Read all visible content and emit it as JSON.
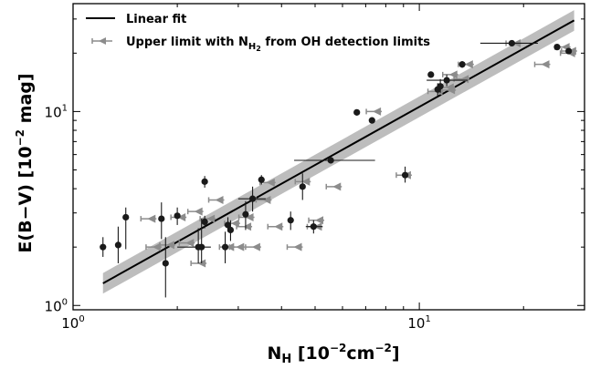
{
  "chart_data": {
    "type": "scatter",
    "xscale": "log",
    "yscale": "log",
    "xlim": [
      1.0,
      30.0
    ],
    "ylim": [
      0.95,
      36.0
    ],
    "xlabel": {
      "main": "N",
      "sub": "H",
      "rest": " [10",
      "sup": "−2",
      "rest2": "cm",
      "sup2": "−2",
      "end": "]"
    },
    "ylabel": {
      "main": "E(B−V) [10",
      "sup": "−2",
      "end": " mag]"
    },
    "x_ticks": [
      {
        "value": 1,
        "base": "10",
        "exp": "0"
      },
      {
        "value": 10,
        "base": "10",
        "exp": "1"
      }
    ],
    "y_ticks": [
      {
        "value": 1,
        "base": "10",
        "exp": "0"
      },
      {
        "value": 10,
        "base": "10",
        "exp": "1"
      }
    ],
    "legend": {
      "placement": "top-left",
      "fit_label": "Linear fit",
      "limit_label": {
        "main": "Upper limit with N",
        "sub": "H",
        "sub2": "2",
        "end": " from OH detection limits"
      }
    },
    "fit": {
      "x": [
        1.22,
        28.0
      ],
      "y": [
        1.3,
        29.5
      ],
      "band_factor": 1.13
    },
    "colors": {
      "detection": "#1a1a1a",
      "limit": "#8c8c8c",
      "band": "#bdbdbd",
      "fit": "#000000"
    },
    "detections": [
      {
        "x": 1.22,
        "y": 2.0,
        "yerr_lo": 0.22,
        "yerr_hi": 0.25
      },
      {
        "x": 1.35,
        "y": 2.05,
        "yerr_lo": 0.4,
        "yerr_hi": 0.5
      },
      {
        "x": 1.42,
        "y": 2.85,
        "yerr_lo": 0.9,
        "yerr_hi": 0.35
      },
      {
        "x": 1.8,
        "y": 2.8,
        "yerr_lo": 0.6,
        "yerr_hi": 0.6
      },
      {
        "x": 1.85,
        "y": 1.65,
        "yerr_lo": 0.55,
        "yerr_hi": 0.6
      },
      {
        "x": 2.0,
        "y": 2.9,
        "yerr_lo": 0.3,
        "yerr_hi": 0.3
      },
      {
        "x": 2.3,
        "y": 2.0,
        "xerr_lo": 0.3,
        "xerr_hi": 0.2,
        "yerr_lo": 0.35,
        "yerr_hi": 0.5
      },
      {
        "x": 2.35,
        "y": 2.0,
        "yerr_lo": 0.35,
        "yerr_hi": 0.8
      },
      {
        "x": 2.4,
        "y": 4.35,
        "yerr_lo": 0.3,
        "yerr_hi": 0.3
      },
      {
        "x": 2.4,
        "y": 2.7,
        "yerr_lo": 0.2,
        "yerr_hi": 0.2
      },
      {
        "x": 2.75,
        "y": 2.0,
        "yerr_lo": 0.35,
        "yerr_hi": 0.4
      },
      {
        "x": 2.8,
        "y": 2.6,
        "yerr_lo": 0.2,
        "yerr_hi": 0.25
      },
      {
        "x": 2.85,
        "y": 2.45,
        "yerr_lo": 0.3,
        "yerr_hi": 0.3
      },
      {
        "x": 3.15,
        "y": 2.95,
        "yerr_lo": 0.5,
        "yerr_hi": 0.5
      },
      {
        "x": 3.3,
        "y": 3.55,
        "xerr_lo": 0.3,
        "xerr_hi": 0.3,
        "yerr_lo": 0.5,
        "yerr_hi": 0.55
      },
      {
        "x": 3.5,
        "y": 4.45,
        "yerr_lo": 0.25,
        "yerr_hi": 0.25
      },
      {
        "x": 4.25,
        "y": 2.75,
        "yerr_lo": 0.3,
        "yerr_hi": 0.3
      },
      {
        "x": 4.6,
        "y": 4.1,
        "yerr_lo": 0.6,
        "yerr_hi": 0.7
      },
      {
        "x": 4.95,
        "y": 2.55,
        "xerr_lo": 0.25,
        "xerr_hi": 0.3,
        "yerr_lo": 0.2,
        "yerr_hi": 0.2
      },
      {
        "x": 5.55,
        "y": 5.6,
        "xerr_lo": 1.2,
        "xerr_hi": 1.9,
        "yerr_lo": 0.15,
        "yerr_hi": 0.15
      },
      {
        "x": 6.6,
        "y": 9.9,
        "yerr_lo": 0.3,
        "yerr_hi": 0.3
      },
      {
        "x": 7.3,
        "y": 9.0,
        "yerr_lo": 0.3,
        "yerr_hi": 0.3
      },
      {
        "x": 9.1,
        "y": 4.7,
        "yerr_lo": 0.4,
        "yerr_hi": 0.5
      },
      {
        "x": 10.8,
        "y": 15.5,
        "yerr_lo": 0.5,
        "yerr_hi": 0.5
      },
      {
        "x": 11.3,
        "y": 13.0,
        "yerr_lo": 1.0,
        "yerr_hi": 1.0
      },
      {
        "x": 11.5,
        "y": 13.5,
        "yerr_lo": 1.0,
        "yerr_hi": 1.2
      },
      {
        "x": 12.0,
        "y": 14.5,
        "xerr_lo": 1.5,
        "xerr_hi": 1.8,
        "yerr_lo": 1.0,
        "yerr_hi": 1.0
      },
      {
        "x": 13.3,
        "y": 17.5,
        "yerr_lo": 0.7,
        "yerr_hi": 0.7
      },
      {
        "x": 18.5,
        "y": 22.5,
        "xerr_lo": 3.5,
        "xerr_hi": 3.5,
        "yerr_lo": 0.6,
        "yerr_hi": 0.6
      },
      {
        "x": 25.0,
        "y": 21.5,
        "yerr_lo": 0.5,
        "yerr_hi": 0.5
      },
      {
        "x": 27.0,
        "y": 20.5,
        "yerr_lo": 0.5,
        "yerr_hi": 0.5
      }
    ],
    "upper_limits": [
      {
        "x": 1.72,
        "y": 2.8
      },
      {
        "x": 1.78,
        "y": 2.0
      },
      {
        "x": 1.95,
        "y": 2.05
      },
      {
        "x": 2.1,
        "y": 2.85
      },
      {
        "x": 2.22,
        "y": 2.1
      },
      {
        "x": 2.4,
        "y": 1.65
      },
      {
        "x": 2.35,
        "y": 3.05
      },
      {
        "x": 2.55,
        "y": 2.8
      },
      {
        "x": 2.7,
        "y": 3.5
      },
      {
        "x": 2.9,
        "y": 2.0
      },
      {
        "x": 3.0,
        "y": 2.65
      },
      {
        "x": 3.1,
        "y": 2.0
      },
      {
        "x": 3.25,
        "y": 2.55
      },
      {
        "x": 3.3,
        "y": 2.85
      },
      {
        "x": 3.45,
        "y": 2.0
      },
      {
        "x": 3.7,
        "y": 3.5
      },
      {
        "x": 3.8,
        "y": 4.3
      },
      {
        "x": 4.0,
        "y": 2.55
      },
      {
        "x": 4.55,
        "y": 2.0
      },
      {
        "x": 4.8,
        "y": 4.35
      },
      {
        "x": 5.2,
        "y": 2.55
      },
      {
        "x": 5.25,
        "y": 2.75
      },
      {
        "x": 5.9,
        "y": 4.1
      },
      {
        "x": 7.7,
        "y": 10.0
      },
      {
        "x": 9.4,
        "y": 4.7
      },
      {
        "x": 11.6,
        "y": 12.7
      },
      {
        "x": 12.6,
        "y": 12.9
      },
      {
        "x": 12.5,
        "y": 13.3
      },
      {
        "x": 12.8,
        "y": 15.5
      },
      {
        "x": 13.8,
        "y": 14.7
      },
      {
        "x": 14.2,
        "y": 17.5
      },
      {
        "x": 19.5,
        "y": 22.5
      },
      {
        "x": 23.6,
        "y": 17.5
      },
      {
        "x": 27.0,
        "y": 21.5
      },
      {
        "x": 28.2,
        "y": 20.5
      },
      {
        "x": 28.0,
        "y": 20.0
      }
    ]
  }
}
